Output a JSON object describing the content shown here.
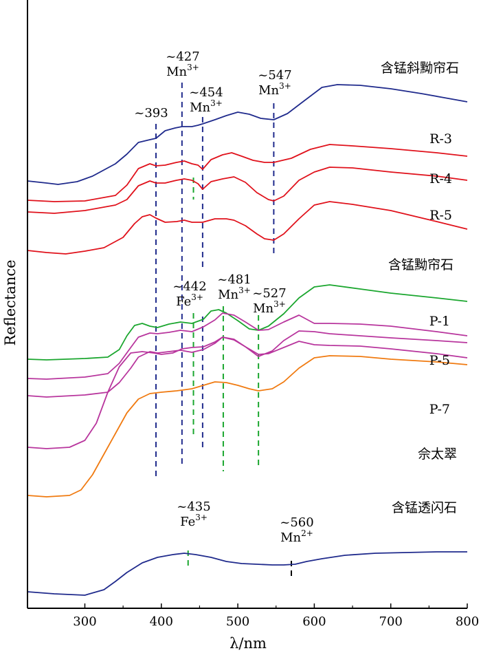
{
  "chart_data": {
    "type": "line",
    "xlabel": "λ/nm",
    "ylabel": "Reflectance",
    "xlim": [
      225,
      800
    ],
    "x_ticks": [
      300,
      400,
      500,
      600,
      700,
      800
    ],
    "grid": false,
    "legend": "none",
    "series": [
      {
        "name": "含锰斜黝帘石",
        "color": "#1f2a8c",
        "x": [
          225,
          250,
          265,
          290,
          310,
          340,
          355,
          370,
          385,
          393,
          405,
          418,
          427,
          440,
          448,
          454,
          470,
          485,
          500,
          515,
          530,
          547,
          565,
          585,
          610,
          630,
          660,
          700,
          740,
          770,
          800
        ],
        "y": [
          263,
          266,
          268,
          264,
          256,
          238,
          224,
          207,
          203,
          201,
          190,
          186,
          184,
          184,
          182,
          180,
          174,
          168,
          163,
          166,
          172,
          174,
          165,
          148,
          127,
          123,
          124,
          129,
          136,
          142,
          148
        ]
      },
      {
        "name": "R-3",
        "color": "#e0111b",
        "x": [
          225,
          260,
          300,
          340,
          355,
          370,
          385,
          393,
          405,
          420,
          430,
          440,
          448,
          454,
          465,
          480,
          492,
          505,
          520,
          535,
          547,
          570,
          595,
          620,
          650,
          700,
          760,
          800
        ],
        "y": [
          291,
          293,
          292,
          284,
          269,
          245,
          238,
          241,
          240,
          236,
          234,
          238,
          240,
          246,
          232,
          225,
          222,
          227,
          233,
          236,
          236,
          230,
          217,
          210,
          212,
          216,
          222,
          227
        ]
      },
      {
        "name": "R-4",
        "color": "#e0111b",
        "x": [
          225,
          260,
          300,
          340,
          355,
          370,
          385,
          393,
          405,
          420,
          430,
          440,
          448,
          454,
          465,
          480,
          495,
          510,
          525,
          540,
          547,
          560,
          580,
          600,
          620,
          650,
          700,
          760,
          800
        ],
        "y": [
          308,
          310,
          306,
          298,
          290,
          270,
          263,
          266,
          266,
          262,
          260,
          262,
          267,
          275,
          264,
          260,
          257,
          265,
          280,
          290,
          292,
          285,
          262,
          250,
          243,
          244,
          250,
          256,
          262
        ]
      },
      {
        "name": "R-5",
        "color": "#e0111b",
        "x": [
          225,
          250,
          275,
          300,
          325,
          350,
          365,
          375,
          385,
          393,
          405,
          420,
          430,
          440,
          454,
          470,
          485,
          495,
          510,
          525,
          535,
          547,
          560,
          580,
          600,
          620,
          650,
          700,
          760,
          800
        ],
        "y": [
          364,
          367,
          369,
          365,
          360,
          345,
          325,
          315,
          312,
          317,
          323,
          322,
          320,
          323,
          323,
          318,
          318,
          320,
          328,
          340,
          347,
          349,
          340,
          318,
          298,
          293,
          297,
          306,
          322,
          333
        ]
      },
      {
        "name": "含锰黝帘石",
        "color": "#1aa62e",
        "x": [
          225,
          250,
          300,
          330,
          345,
          355,
          365,
          375,
          385,
          395,
          410,
          425,
          440,
          455,
          465,
          475,
          485,
          500,
          515,
          527,
          540,
          560,
          580,
          600,
          620,
          660,
          700,
          760,
          800
        ],
        "y": [
          522,
          523,
          521,
          519,
          508,
          488,
          473,
          470,
          474,
          476,
          471,
          468,
          470,
          464,
          452,
          450,
          455,
          466,
          478,
          480,
          474,
          456,
          433,
          417,
          414,
          420,
          426,
          433,
          438
        ]
      },
      {
        "name": "P-1",
        "color": "#b8359d",
        "x": [
          225,
          250,
          300,
          330,
          345,
          360,
          370,
          385,
          395,
          410,
          425,
          440,
          455,
          470,
          480,
          495,
          510,
          527,
          540,
          560,
          580,
          600,
          620,
          660,
          700,
          760,
          800
        ],
        "y": [
          550,
          551,
          548,
          543,
          528,
          505,
          490,
          484,
          485,
          483,
          480,
          482,
          475,
          465,
          455,
          458,
          468,
          480,
          479,
          468,
          458,
          470,
          470,
          471,
          474,
          482,
          488
        ]
      },
      {
        "name": "P-5",
        "color": "#b8359d",
        "x": [
          225,
          250,
          300,
          330,
          345,
          360,
          370,
          385,
          395,
          410,
          425,
          440,
          455,
          470,
          480,
          495,
          510,
          527,
          540,
          560,
          580,
          600,
          620,
          660,
          700,
          760,
          800
        ],
        "y": [
          575,
          577,
          574,
          570,
          556,
          535,
          519,
          511,
          513,
          511,
          509,
          512,
          508,
          499,
          490,
          494,
          504,
          515,
          514,
          505,
          496,
          501,
          502,
          503,
          507,
          514,
          520
        ]
      },
      {
        "name": "P-7",
        "color": "#b8359d",
        "x": [
          225,
          250,
          280,
          300,
          315,
          330,
          345,
          360,
          375,
          390,
          400,
          415,
          427,
          440,
          455,
          470,
          480,
          495,
          510,
          527,
          545,
          560,
          580,
          600,
          620,
          660,
          700,
          760,
          800
        ],
        "y": [
          650,
          652,
          650,
          640,
          615,
          570,
          533,
          513,
          511,
          513,
          515,
          513,
          507,
          505,
          504,
          497,
          490,
          493,
          504,
          518,
          510,
          495,
          481,
          482,
          485,
          488,
          491,
          495,
          498
        ]
      },
      {
        "name": "佘太翠",
        "color": "#f07a10",
        "x": [
          225,
          250,
          280,
          295,
          310,
          325,
          340,
          355,
          370,
          385,
          400,
          420,
          440,
          455,
          470,
          485,
          500,
          515,
          527,
          545,
          560,
          580,
          600,
          620,
          660,
          700,
          760,
          800
        ],
        "y": [
          720,
          722,
          720,
          712,
          690,
          660,
          630,
          600,
          580,
          572,
          570,
          568,
          565,
          560,
          555,
          556,
          560,
          565,
          568,
          565,
          555,
          535,
          520,
          517,
          518,
          522,
          526,
          530
        ]
      },
      {
        "name": "含锰透闪石",
        "color": "#1f2a8c",
        "x": [
          225,
          260,
          300,
          325,
          340,
          355,
          375,
          395,
          415,
          430,
          445,
          465,
          485,
          505,
          525,
          545,
          560,
          575,
          590,
          610,
          640,
          680,
          720,
          760,
          800
        ],
        "y": [
          860,
          863,
          865,
          857,
          845,
          832,
          818,
          810,
          806,
          804,
          806,
          810,
          816,
          819,
          820,
          821,
          821,
          820,
          816,
          812,
          807,
          804,
          803,
          802,
          802
        ]
      }
    ],
    "annotations": [
      {
        "wavelength": "~393",
        "ion": "",
        "color": "#1f2a8c"
      },
      {
        "wavelength": "~427",
        "ion": "Mn",
        "charge": "3+",
        "color": "#1f2a8c"
      },
      {
        "wavelength": "~454",
        "ion": "Mn",
        "charge": "3+",
        "color": "#1f2a8c"
      },
      {
        "wavelength": "~547",
        "ion": "Mn",
        "charge": "3+",
        "color": "#1f2a8c"
      },
      {
        "wavelength": "~442",
        "ion": "Fe",
        "charge": "3+",
        "color": "#1aa62e"
      },
      {
        "wavelength": "~481",
        "ion": "Mn",
        "charge": "3+",
        "color": "#1aa62e"
      },
      {
        "wavelength": "~527",
        "ion": "Mn",
        "charge": "3+",
        "color": "#1aa62e"
      },
      {
        "wavelength": "~435",
        "ion": "Fe",
        "charge": "3+",
        "color": "#1aa62e"
      },
      {
        "wavelength": "~560",
        "ion": "Mn",
        "charge": "2+",
        "color": "#000000"
      }
    ]
  }
}
